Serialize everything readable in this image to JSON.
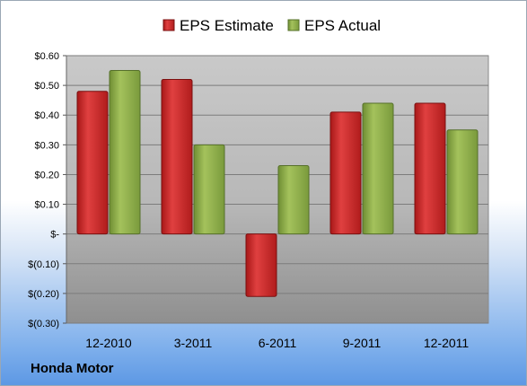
{
  "chart_data": {
    "type": "bar",
    "categories": [
      "12-2010",
      "3-2011",
      "6-2011",
      "9-2011",
      "12-2011"
    ],
    "series": [
      {
        "name": "EPS Estimate",
        "values": [
          0.48,
          0.52,
          -0.21,
          0.41,
          0.44
        ],
        "color": "#cc2222"
      },
      {
        "name": "EPS Actual",
        "values": [
          0.55,
          0.3,
          0.23,
          0.44,
          0.35
        ],
        "color": "#8aaa48"
      }
    ],
    "ylim": [
      -0.3,
      0.6
    ],
    "yticks": [
      0.6,
      0.5,
      0.4,
      0.3,
      0.2,
      0.1,
      0.0,
      -0.1,
      -0.2,
      -0.3
    ],
    "ytick_labels": [
      "$0.60",
      "$0.50",
      "$0.40",
      "$0.30",
      "$0.20",
      "$0.10",
      "$-",
      "$(0.10)",
      "$(0.20)",
      "$(0.30)"
    ],
    "legend_position": "top",
    "grid": true
  },
  "footer": {
    "company": "Honda Motor"
  }
}
